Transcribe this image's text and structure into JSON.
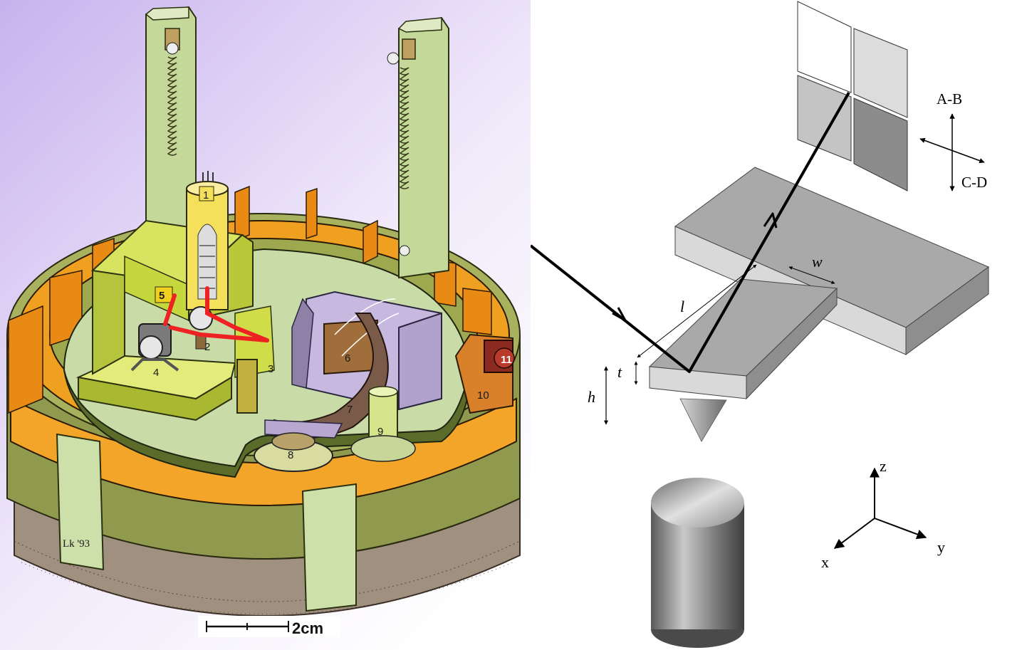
{
  "left_illustration": {
    "component_numbers": [
      "1",
      "2",
      "3",
      "4",
      "5",
      "6",
      "7",
      "8",
      "9",
      "10",
      "11"
    ],
    "signature": "Lk '93",
    "scale_bar_label": "2cm"
  },
  "right_diagram": {
    "photodiode_axis_labels": {
      "vertical": "A-B",
      "horizontal": "C-D"
    },
    "dimension_labels": {
      "length": "l",
      "width": "w",
      "thickness": "t",
      "tip_height": "h"
    },
    "coordinate_axes": {
      "x": "x",
      "y": "y",
      "z": "z"
    }
  },
  "colors": {
    "left_background_top": "#c8b2ee",
    "left_background_bottom": "#ffffff",
    "stage_green": "#c9dca8",
    "olive_base": "#8f9a4e",
    "orange_ring": "#f0a020",
    "yellow_green_block": "#c9d83a",
    "lavender_block": "#c7b8e0",
    "brown_arm": "#7a5a48",
    "laser_red": "#ee2222",
    "grey_light": "#cfcfcf",
    "grey_dark": "#8a8a8a"
  }
}
